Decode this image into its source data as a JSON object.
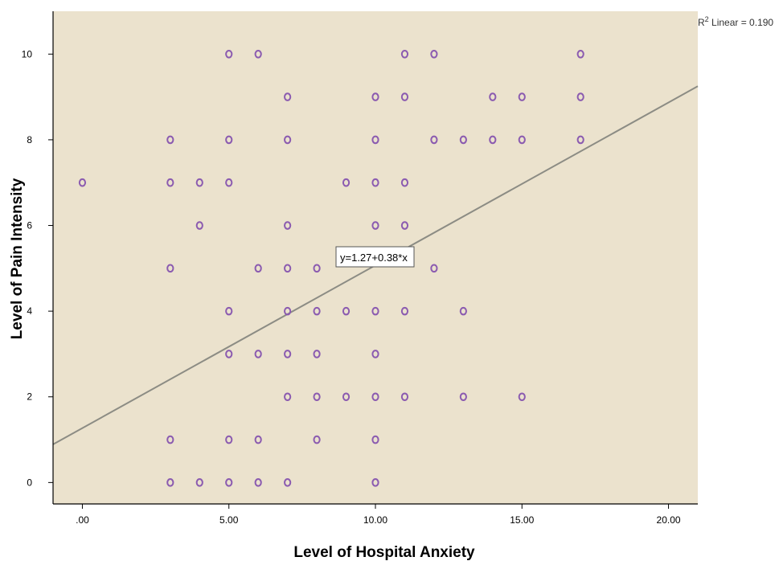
{
  "chart_data": {
    "type": "scatter",
    "xlabel": "Level of Hospital Anxiety",
    "ylabel": "Level of Pain Intensity",
    "xlim": [
      -1,
      21
    ],
    "ylim": [
      -0.5,
      11
    ],
    "x_ticks": [
      0,
      5,
      10,
      15,
      20
    ],
    "x_tick_labels": [
      ".00",
      "5.00",
      "10.00",
      "15.00",
      "20.00"
    ],
    "y_ticks": [
      0,
      2,
      4,
      6,
      8,
      10
    ],
    "y_tick_labels": [
      "0",
      "2",
      "4",
      "6",
      "8",
      "10"
    ],
    "grid": false,
    "plot_background": "#ebe2cd",
    "marker_color": "#8b5bb0",
    "fit_line_color": "#8c8c84",
    "fit_line": {
      "intercept": 1.27,
      "slope": 0.38
    },
    "equation_label": "y=1.27+0.38*x",
    "r2_label": {
      "prefix": "R",
      "sup": "2",
      "text": " Linear = 0.190"
    },
    "points": [
      [
        5,
        10
      ],
      [
        6,
        10
      ],
      [
        11,
        10
      ],
      [
        12,
        10
      ],
      [
        17,
        10
      ],
      [
        7,
        9
      ],
      [
        10,
        9
      ],
      [
        11,
        9
      ],
      [
        14,
        9
      ],
      [
        15,
        9
      ],
      [
        17,
        9
      ],
      [
        3,
        8
      ],
      [
        5,
        8
      ],
      [
        7,
        8
      ],
      [
        10,
        8
      ],
      [
        12,
        8
      ],
      [
        13,
        8
      ],
      [
        14,
        8
      ],
      [
        15,
        8
      ],
      [
        17,
        8
      ],
      [
        0,
        7
      ],
      [
        3,
        7
      ],
      [
        4,
        7
      ],
      [
        5,
        7
      ],
      [
        9,
        7
      ],
      [
        10,
        7
      ],
      [
        11,
        7
      ],
      [
        4,
        6
      ],
      [
        7,
        6
      ],
      [
        10,
        6
      ],
      [
        11,
        6
      ],
      [
        3,
        5
      ],
      [
        6,
        5
      ],
      [
        7,
        5
      ],
      [
        8,
        5
      ],
      [
        12,
        5
      ],
      [
        5,
        4
      ],
      [
        7,
        4
      ],
      [
        8,
        4
      ],
      [
        9,
        4
      ],
      [
        10,
        4
      ],
      [
        11,
        4
      ],
      [
        13,
        4
      ],
      [
        5,
        3
      ],
      [
        6,
        3
      ],
      [
        7,
        3
      ],
      [
        8,
        3
      ],
      [
        10,
        3
      ],
      [
        7,
        2
      ],
      [
        8,
        2
      ],
      [
        9,
        2
      ],
      [
        10,
        2
      ],
      [
        11,
        2
      ],
      [
        13,
        2
      ],
      [
        15,
        2
      ],
      [
        3,
        1
      ],
      [
        5,
        1
      ],
      [
        6,
        1
      ],
      [
        8,
        1
      ],
      [
        10,
        1
      ],
      [
        3,
        0
      ],
      [
        4,
        0
      ],
      [
        5,
        0
      ],
      [
        6,
        0
      ],
      [
        7,
        0
      ],
      [
        10,
        0
      ]
    ]
  }
}
